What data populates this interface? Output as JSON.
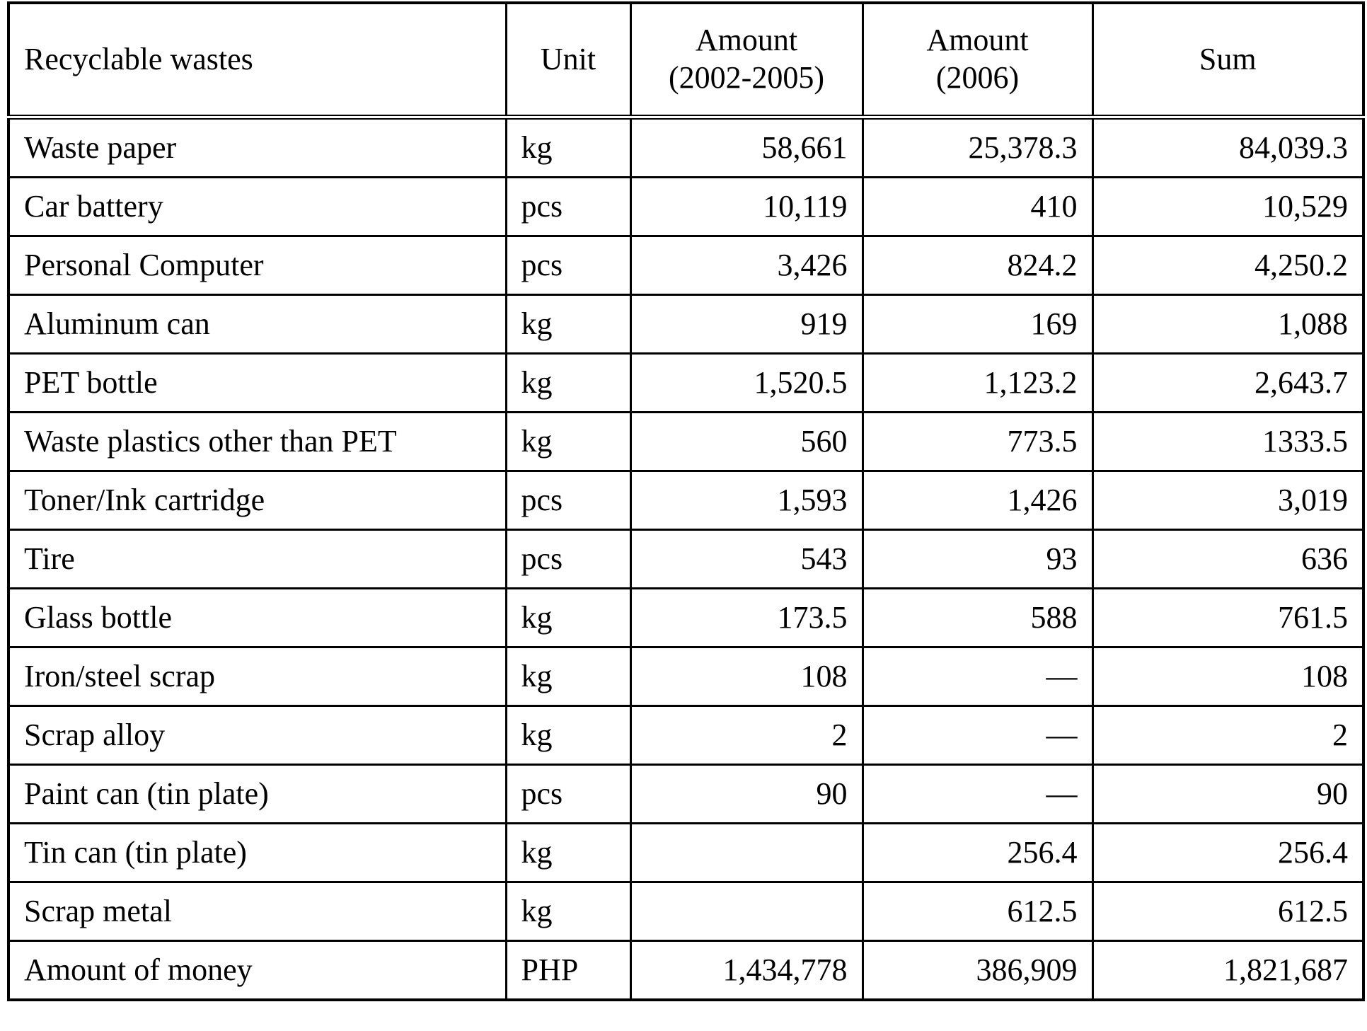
{
  "table": {
    "header": [
      "Recyclable wastes",
      "Unit",
      "Amount\n(2002-2005)",
      "Amount\n(2006)",
      "Sum"
    ],
    "rows": [
      [
        "Waste paper",
        "kg",
        "58,661",
        "25,378.3",
        "84,039.3"
      ],
      [
        "Car battery",
        "pcs",
        "10,119",
        "410",
        "10,529"
      ],
      [
        "Personal Computer",
        "pcs",
        "3,426",
        "824.2",
        "4,250.2"
      ],
      [
        "Aluminum can",
        "kg",
        "919",
        "169",
        "1,088"
      ],
      [
        "PET bottle",
        "kg",
        "1,520.5",
        "1,123.2",
        "2,643.7"
      ],
      [
        "Waste plastics other than PET",
        "kg",
        "560",
        "773.5",
        "1333.5"
      ],
      [
        "Toner/Ink cartridge",
        "pcs",
        "1,593",
        "1,426",
        "3,019"
      ],
      [
        "Tire",
        "pcs",
        "543",
        "93",
        "636"
      ],
      [
        "Glass bottle",
        "kg",
        "173.5",
        "588",
        "761.5"
      ],
      [
        "Iron/steel scrap",
        "kg",
        "108",
        "—",
        "108"
      ],
      [
        "Scrap alloy",
        "kg",
        "2",
        "—",
        "2"
      ],
      [
        "Paint can (tin plate)",
        "pcs",
        "90",
        "—",
        "90"
      ],
      [
        "Tin can (tin plate)",
        "kg",
        null,
        "256.4",
        "256.4"
      ],
      [
        "Scrap metal",
        "kg",
        null,
        "612.5",
        "612.5"
      ],
      [
        "Amount of money",
        "PHP",
        "1,434,778",
        "386,909",
        "1,821,687"
      ]
    ]
  }
}
